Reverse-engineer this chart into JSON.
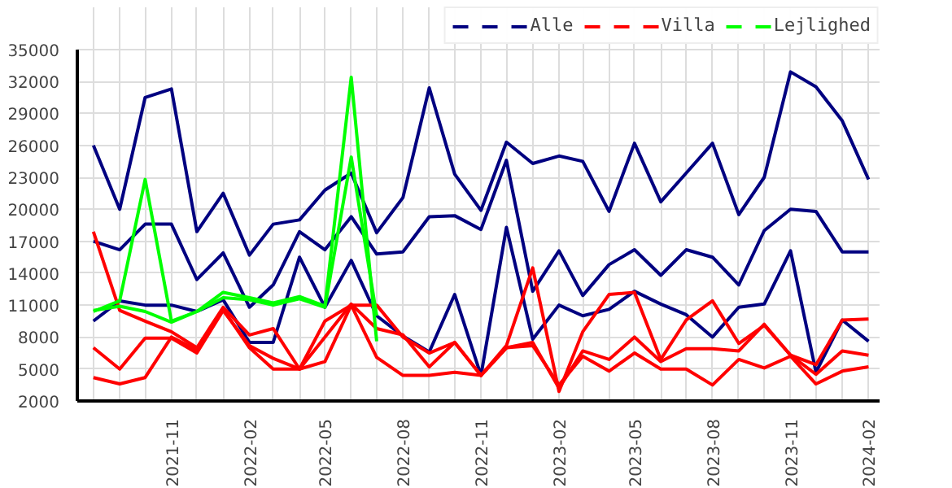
{
  "chart_data": {
    "type": "line",
    "x": [
      "2021-08",
      "2021-09",
      "2021-10",
      "2021-11",
      "2021-12",
      "2022-01",
      "2022-02",
      "2022-03",
      "2022-04",
      "2022-05",
      "2022-06",
      "2022-07",
      "2022-08",
      "2022-09",
      "2022-10",
      "2022-11",
      "2022-12",
      "2023-01",
      "2023-02",
      "2023-03",
      "2023-04",
      "2023-05",
      "2023-06",
      "2023-07",
      "2023-08",
      "2023-09",
      "2023-10",
      "2023-11",
      "2023-12",
      "2024-01",
      "2024-02"
    ],
    "series": [
      {
        "color": "#000080",
        "values": [
          26000,
          20000,
          30500,
          31300,
          17900,
          21500,
          15700,
          18600,
          19000,
          21800,
          23400,
          17800,
          21100,
          31400,
          23300,
          19900,
          26300,
          24300,
          25000,
          24500,
          19800,
          26200,
          20700,
          23400,
          26200,
          19500,
          23000,
          32900,
          31500,
          28300,
          22800
        ]
      },
      {
        "color": "#000080",
        "values": [
          17000,
          16200,
          18600,
          18600,
          13400,
          15900,
          10800,
          12900,
          17900,
          16200,
          19300,
          15800,
          16000,
          19300,
          19400,
          18100,
          24600,
          12300,
          16100,
          11900,
          14800,
          16200,
          13800,
          16200,
          15500,
          12900,
          18000,
          20000,
          19800,
          16000,
          16000
        ]
      },
      {
        "name": "Alle",
        "color": "#000080",
        "values": [
          9500,
          11400,
          11000,
          11000,
          10400,
          11500,
          7500,
          7500,
          15500,
          10800,
          15200,
          10000,
          8100,
          6600,
          12000,
          4400,
          18300,
          7800,
          11000,
          10000,
          10600,
          12300,
          11100,
          10100,
          8000,
          10800,
          11100,
          16100,
          4700,
          9600,
          7600
        ]
      },
      {
        "color": "#ff0000",
        "values": [
          17900,
          10500,
          9500,
          8500,
          7000,
          10800,
          8200,
          8800,
          5000,
          9500,
          11000,
          11000,
          8000,
          6500,
          7500,
          4400,
          7200,
          14500,
          2900,
          8500,
          12000,
          12200,
          5900,
          9600,
          11400,
          7400,
          9100,
          6300,
          5400,
          9600,
          9700
        ]
      },
      {
        "color": "#ff0000",
        "values": [
          7000,
          5000,
          7900,
          7900,
          6500,
          10500,
          7200,
          6000,
          5000,
          8000,
          11100,
          8800,
          8200,
          5200,
          7500,
          4400,
          7000,
          7500,
          3200,
          6700,
          5900,
          8000,
          5700,
          6900,
          6900,
          6700,
          9200,
          6300,
          4500,
          6700,
          6300
        ]
      },
      {
        "name": "Villa",
        "color": "#ff0000",
        "values": [
          4200,
          3600,
          4200,
          8000,
          6800,
          10600,
          7000,
          5000,
          5000,
          5700,
          11000,
          6100,
          4400,
          4400,
          4700,
          4400,
          7000,
          7200,
          3500,
          6200,
          4800,
          6500,
          5000,
          5000,
          3500,
          5900,
          5100,
          6200,
          3600,
          4800,
          5200
        ]
      },
      {
        "color": "#00ff00",
        "values": [
          10400,
          11400,
          22800,
          9500,
          10400,
          12200,
          11700,
          11200,
          11800,
          10900,
          32400,
          7600,
          null,
          null,
          null,
          null,
          null,
          null,
          null,
          null,
          null,
          null,
          null,
          null,
          null,
          null,
          null,
          null,
          null,
          null,
          null
        ]
      },
      {
        "name": "Lejlighed",
        "color": "#00ff00",
        "values": [
          10500,
          10900,
          10400,
          9400,
          10400,
          11700,
          11500,
          11000,
          11600,
          10800,
          24900,
          10000,
          null,
          null,
          null,
          null,
          null,
          null,
          null,
          null,
          null,
          null,
          null,
          null,
          null,
          null,
          null,
          null,
          null,
          null,
          null
        ]
      }
    ],
    "xlim": [
      "2021-07-13",
      "2024-02-14"
    ],
    "xticks": [
      {
        "value": "2021-08",
        "label": null
      },
      {
        "value": "2021-09",
        "label": null
      },
      {
        "value": "2021-10",
        "label": null
      },
      "2021-11",
      {
        "value": "2021-12",
        "label": null
      },
      {
        "value": "2022-01",
        "label": null
      },
      "2022-02",
      {
        "value": "2022-03",
        "label": null
      },
      {
        "value": "2022-04",
        "label": null
      },
      "2022-05",
      {
        "value": "2022-06",
        "label": null
      },
      {
        "value": "2022-07",
        "label": null
      },
      "2022-08",
      {
        "value": "2022-09",
        "label": null
      },
      {
        "value": "2022-10",
        "label": null
      },
      "2022-11",
      {
        "value": "2022-12",
        "label": null
      },
      {
        "value": "2023-01",
        "label": null
      },
      "2023-02",
      {
        "value": "2023-03",
        "label": null
      },
      {
        "value": "2023-04",
        "label": null
      },
      "2023-05",
      {
        "value": "2023-06",
        "label": null
      },
      {
        "value": "2023-07",
        "label": null
      },
      "2023-08",
      {
        "value": "2023-09",
        "label": null
      },
      {
        "value": "2023-10",
        "label": null
      },
      "2023-11",
      {
        "value": "2023-12",
        "label": null
      },
      {
        "value": "2024-01",
        "label": null
      },
      "2024-02"
    ],
    "ylim": [
      2000,
      35000
    ],
    "yticks": [
      2000,
      5000,
      8000,
      11000,
      14000,
      17000,
      20000,
      23000,
      26000,
      29000,
      32000,
      35000
    ],
    "grid": true,
    "legend": "top right",
    "marker": "none",
    "line_style": "solid"
  }
}
